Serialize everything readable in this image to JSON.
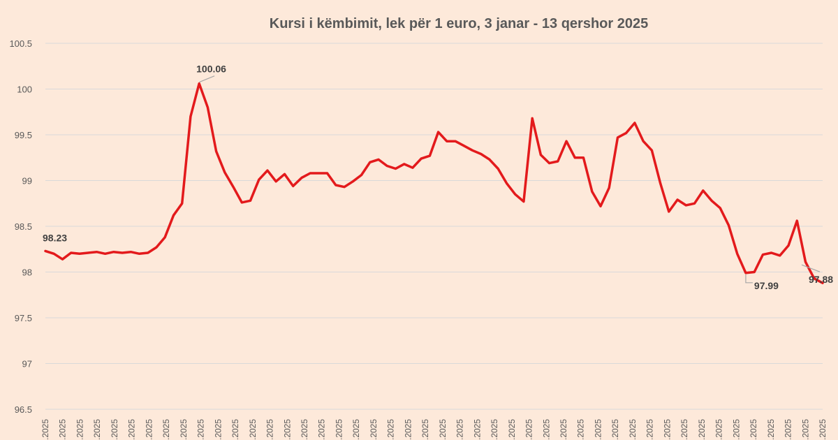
{
  "chart_data": {
    "type": "line",
    "title": "Kursi i këmbimit, lek për 1 euro, 3 janar - 13 qershor 2025",
    "xlabel": "",
    "ylabel": "",
    "ylim": [
      96.5,
      100.5
    ],
    "yticks": [
      "96.5",
      "97",
      "97.5",
      "98",
      "98.5",
      "99",
      "99.5",
      "100",
      "100.5"
    ],
    "grid": true,
    "x_tick_label": ".2025",
    "series": [
      {
        "color": "#e31a1c",
        "values": [
          98.23,
          98.2,
          98.14,
          98.21,
          98.2,
          98.21,
          98.22,
          98.2,
          98.22,
          98.21,
          98.22,
          98.2,
          98.21,
          98.27,
          98.38,
          98.62,
          98.75,
          99.7,
          100.06,
          99.8,
          99.32,
          99.09,
          98.93,
          98.76,
          98.78,
          99.01,
          99.11,
          98.99,
          99.07,
          98.94,
          99.03,
          99.08,
          99.08,
          99.08,
          98.95,
          98.93,
          98.99,
          99.06,
          99.2,
          99.23,
          99.16,
          99.13,
          99.18,
          99.14,
          99.24,
          99.27,
          99.53,
          99.43,
          99.43,
          99.38,
          99.33,
          99.29,
          99.23,
          99.13,
          98.97,
          98.85,
          98.77,
          99.68,
          99.28,
          99.19,
          99.21,
          99.43,
          99.25,
          99.25,
          98.88,
          98.72,
          98.92,
          99.47,
          99.52,
          99.63,
          99.43,
          99.33,
          98.97,
          98.66,
          98.79,
          98.73,
          98.75,
          98.89,
          98.78,
          98.7,
          98.51,
          98.2,
          97.99,
          98.0,
          98.19,
          98.21,
          98.18,
          98.29,
          98.56,
          98.11,
          97.93,
          97.88
        ]
      }
    ],
    "annotations": [
      {
        "label": "98.23",
        "index": 0
      },
      {
        "label": "100.06",
        "index": 18
      },
      {
        "label": "97.99",
        "index": 82
      },
      {
        "label": "97.88",
        "index": 91
      }
    ]
  }
}
